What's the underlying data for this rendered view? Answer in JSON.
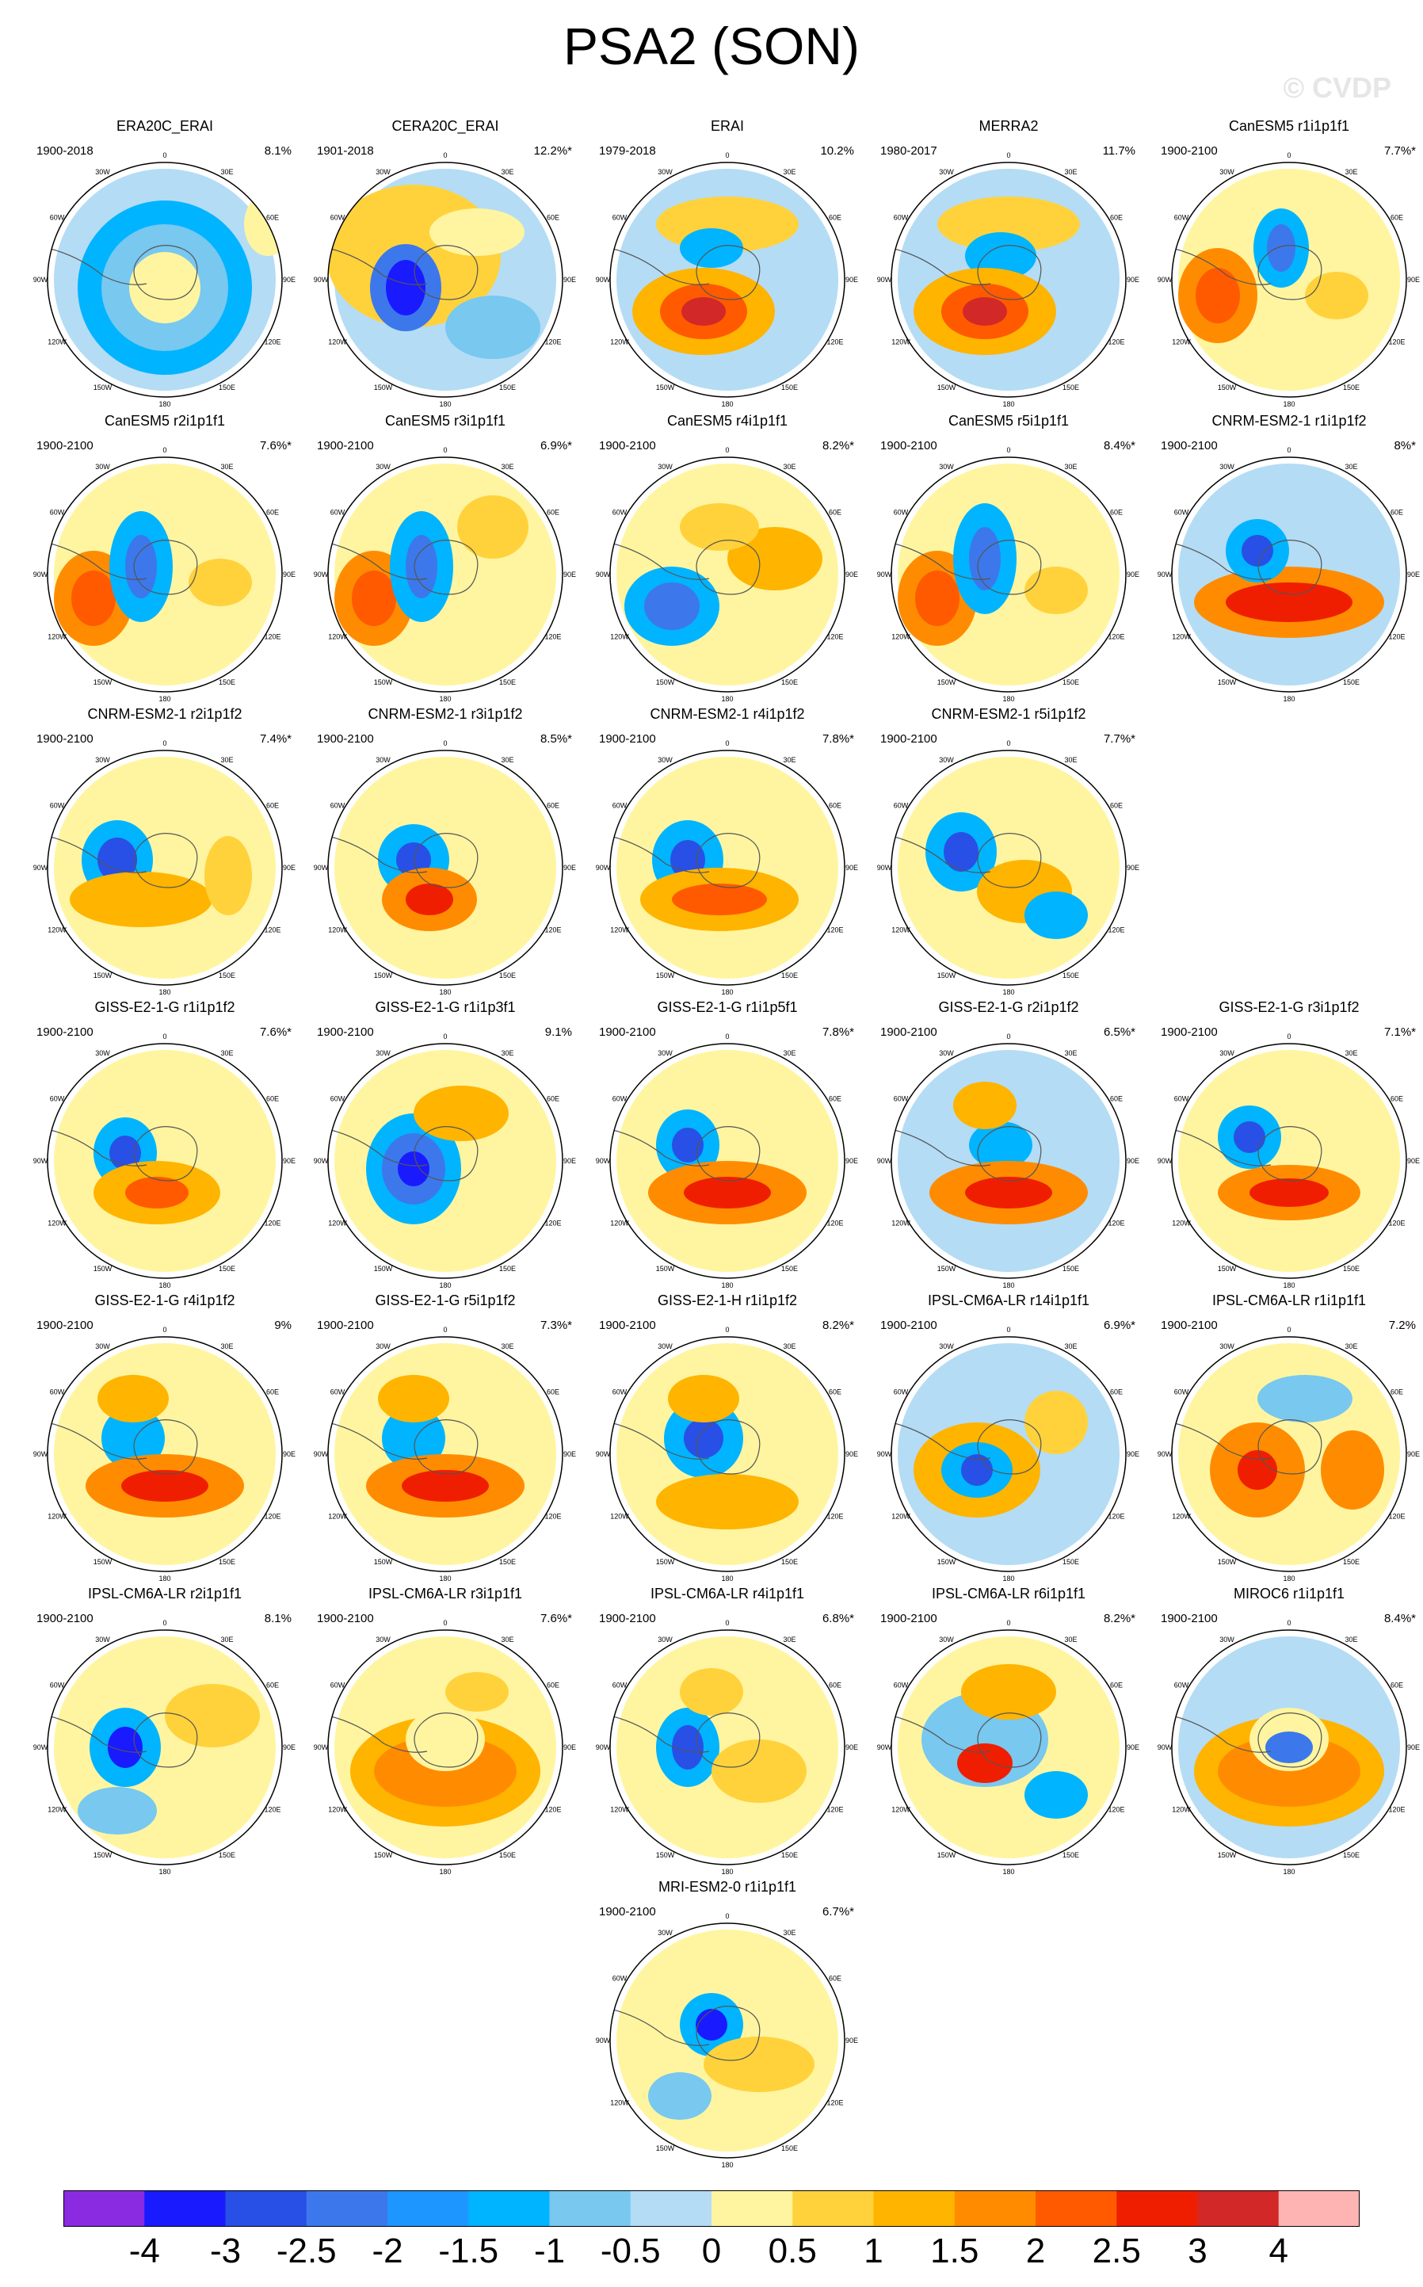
{
  "title": "PSA2 (SON)",
  "watermark": "© CVDP",
  "map_labels": {
    "top": "0",
    "tr1": "30E",
    "tr2": "60E",
    "right": "90E",
    "br1": "120E",
    "br2": "150E",
    "bottom": "180",
    "bl2": "150W",
    "bl1": "120W",
    "left": "90W",
    "tl2": "60W",
    "tl1": "30W"
  },
  "panels": [
    {
      "name": "ERA20C_ERAI",
      "period": "1900-2018",
      "pct": "8.1%"
    },
    {
      "name": "CERA20C_ERAI",
      "period": "1901-2018",
      "pct": "12.2%*"
    },
    {
      "name": "ERAI",
      "period": "1979-2018",
      "pct": "10.2%"
    },
    {
      "name": "MERRA2",
      "period": "1980-2017",
      "pct": "11.7%"
    },
    {
      "name": "CanESM5 r1i1p1f1",
      "period": "1900-2100",
      "pct": "7.7%*"
    },
    {
      "name": "CanESM5 r2i1p1f1",
      "period": "1900-2100",
      "pct": "7.6%*"
    },
    {
      "name": "CanESM5 r3i1p1f1",
      "period": "1900-2100",
      "pct": "6.9%*"
    },
    {
      "name": "CanESM5 r4i1p1f1",
      "period": "1900-2100",
      "pct": "8.2%*"
    },
    {
      "name": "CanESM5 r5i1p1f1",
      "period": "1900-2100",
      "pct": "8.4%*"
    },
    {
      "name": "CNRM-ESM2-1 r1i1p1f2",
      "period": "1900-2100",
      "pct": "8%*"
    },
    {
      "name": "CNRM-ESM2-1 r2i1p1f2",
      "period": "1900-2100",
      "pct": "7.4%*"
    },
    {
      "name": "CNRM-ESM2-1 r3i1p1f2",
      "period": "1900-2100",
      "pct": "8.5%*"
    },
    {
      "name": "CNRM-ESM2-1 r4i1p1f2",
      "period": "1900-2100",
      "pct": "7.8%*"
    },
    {
      "name": "CNRM-ESM2-1 r5i1p1f2",
      "period": "1900-2100",
      "pct": "7.7%*"
    },
    {
      "name": "GISS-E2-1-G r1i1p1f2",
      "period": "1900-2100",
      "pct": "7.6%*"
    },
    {
      "name": "GISS-E2-1-G r1i1p3f1",
      "period": "1900-2100",
      "pct": "9.1%"
    },
    {
      "name": "GISS-E2-1-G r1i1p5f1",
      "period": "1900-2100",
      "pct": "7.8%*"
    },
    {
      "name": "GISS-E2-1-G r2i1p1f2",
      "period": "1900-2100",
      "pct": "6.5%*"
    },
    {
      "name": "GISS-E2-1-G r3i1p1f2",
      "period": "1900-2100",
      "pct": "7.1%*"
    },
    {
      "name": "GISS-E2-1-G r4i1p1f2",
      "period": "1900-2100",
      "pct": "9%"
    },
    {
      "name": "GISS-E2-1-G r5i1p1f2",
      "period": "1900-2100",
      "pct": "7.3%*"
    },
    {
      "name": "GISS-E2-1-H r1i1p1f2",
      "period": "1900-2100",
      "pct": "8.2%*"
    },
    {
      "name": "IPSL-CM6A-LR r14i1p1f1",
      "period": "1900-2100",
      "pct": "6.9%*"
    },
    {
      "name": "IPSL-CM6A-LR r1i1p1f1",
      "period": "1900-2100",
      "pct": "7.2%"
    },
    {
      "name": "IPSL-CM6A-LR r2i1p1f1",
      "period": "1900-2100",
      "pct": "8.1%"
    },
    {
      "name": "IPSL-CM6A-LR r3i1p1f1",
      "period": "1900-2100",
      "pct": "7.6%*"
    },
    {
      "name": "IPSL-CM6A-LR r4i1p1f1",
      "period": "1900-2100",
      "pct": "6.8%*"
    },
    {
      "name": "IPSL-CM6A-LR r6i1p1f1",
      "period": "1900-2100",
      "pct": "8.2%*"
    },
    {
      "name": "MIROC6 r1i1p1f1",
      "period": "1900-2100",
      "pct": "8.4%*"
    },
    {
      "name": "MRI-ESM2-0 r1i1p1f1",
      "period": "1900-2100",
      "pct": "6.7%*"
    }
  ],
  "colorbar": {
    "colors": [
      "#8a2be2",
      "#1a1aff",
      "#2850e6",
      "#3c78eb",
      "#1e96ff",
      "#00b4ff",
      "#78c8f0",
      "#b4dcf5",
      "#fff5a0",
      "#ffd23c",
      "#ffb400",
      "#ff8c00",
      "#ff5a00",
      "#f01e00",
      "#d22828",
      "#ffb4b4"
    ],
    "labels": [
      "-4",
      "-3",
      "-2.5",
      "-2",
      "-1.5",
      "-1",
      "-0.5",
      "0",
      "0.5",
      "1",
      "1.5",
      "2",
      "2.5",
      "3",
      "4"
    ]
  }
}
